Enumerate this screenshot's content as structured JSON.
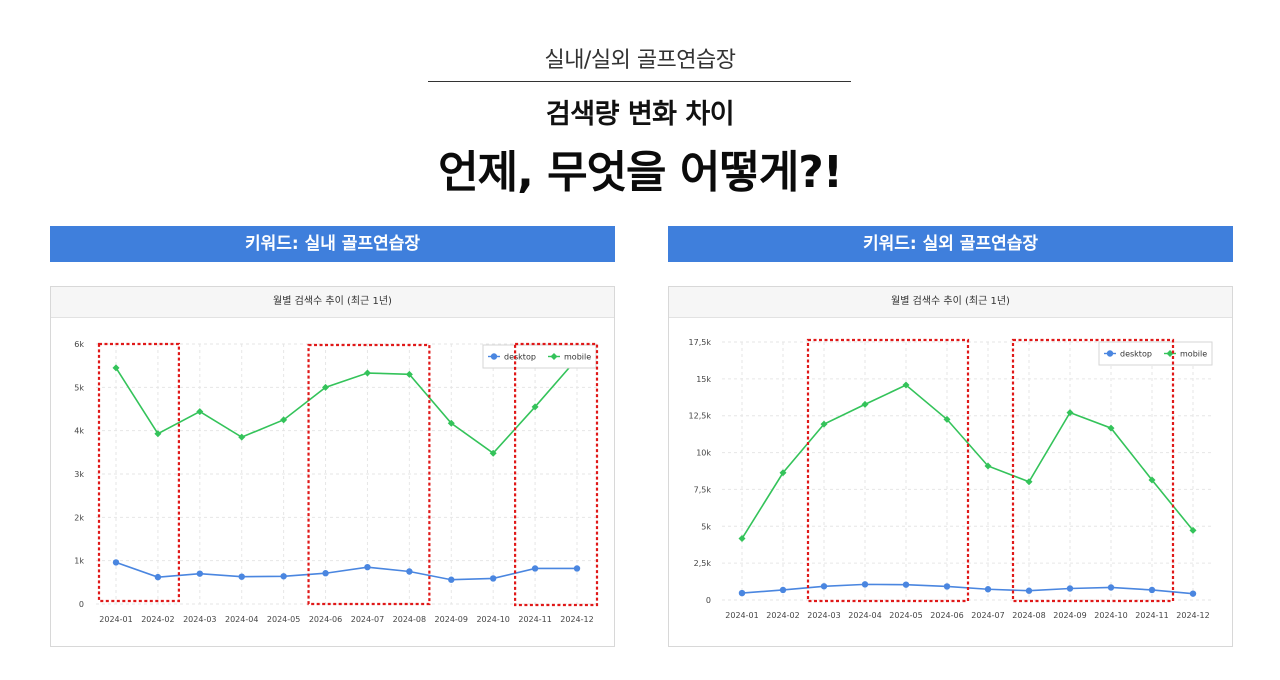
{
  "header": {
    "supertitle": "실내/실외 골프연습장",
    "subtitle": "검색량 변화 차이",
    "headline": "언제, 무엇을 어떻게?!"
  },
  "colors": {
    "keyword_bar": "#3f7fdc",
    "desktop": "#4a86e0",
    "mobile": "#34c35a",
    "highlight": "#e01818"
  },
  "panels": [
    {
      "keyword_label": "키워드: 실내 골프연습장",
      "chart_title": "월별 검색수 추이 (최근 1년)"
    },
    {
      "keyword_label": "키워드: 실외 골프연습장",
      "chart_title": "월별 검색수 추이 (최근 1년)"
    }
  ],
  "chart_data": [
    {
      "type": "line",
      "title": "월별 검색수 추이 (최근 1년)",
      "categories": [
        "2024-01",
        "2024-02",
        "2024-03",
        "2024-04",
        "2024-05",
        "2024-06",
        "2024-07",
        "2024-08",
        "2024-09",
        "2024-10",
        "2024-11",
        "2024-12"
      ],
      "ylim": [
        0,
        6000
      ],
      "yticks": [
        0,
        1000,
        2000,
        3000,
        4000,
        5000,
        6000
      ],
      "ytick_labels": [
        "0",
        "1k",
        "2k",
        "3k",
        "4k",
        "5k",
        "6k"
      ],
      "legend_position": "top-right",
      "grid": true,
      "series": [
        {
          "name": "desktop",
          "values": [
            960,
            620,
            700,
            630,
            640,
            710,
            850,
            750,
            560,
            590,
            820,
            820
          ]
        },
        {
          "name": "mobile",
          "values": [
            5450,
            3930,
            4440,
            3850,
            4250,
            5000,
            5330,
            5300,
            4170,
            3480,
            4550,
            5660
          ]
        }
      ],
      "highlighted_ranges": [
        [
          "2024-01",
          "2024-02"
        ],
        [
          "2024-06",
          "2024-08"
        ],
        [
          "2024-11",
          "2024-12"
        ]
      ]
    },
    {
      "type": "line",
      "title": "월별 검색수 추이 (최근 1년)",
      "categories": [
        "2024-01",
        "2024-02",
        "2024-03",
        "2024-04",
        "2024-05",
        "2024-06",
        "2024-07",
        "2024-08",
        "2024-09",
        "2024-10",
        "2024-11",
        "2024-12"
      ],
      "ylim": [
        0,
        17500
      ],
      "yticks": [
        0,
        2500,
        5000,
        7500,
        10000,
        12500,
        15000,
        17500
      ],
      "ytick_labels": [
        "0",
        "2,5k",
        "5k",
        "7,5k",
        "10k",
        "12,5k",
        "15k",
        "17,5k"
      ],
      "legend_position": "top-right",
      "grid": true,
      "series": [
        {
          "name": "desktop",
          "values": [
            470,
            680,
            930,
            1060,
            1040,
            920,
            730,
            630,
            780,
            850,
            680,
            430
          ]
        },
        {
          "name": "mobile",
          "values": [
            4170,
            8630,
            11930,
            13270,
            14580,
            12250,
            9090,
            8020,
            12710,
            11660,
            8140,
            4720
          ]
        }
      ],
      "highlighted_ranges": [
        [
          "2024-03",
          "2024-06"
        ],
        [
          "2024-08",
          "2024-11"
        ]
      ]
    }
  ]
}
